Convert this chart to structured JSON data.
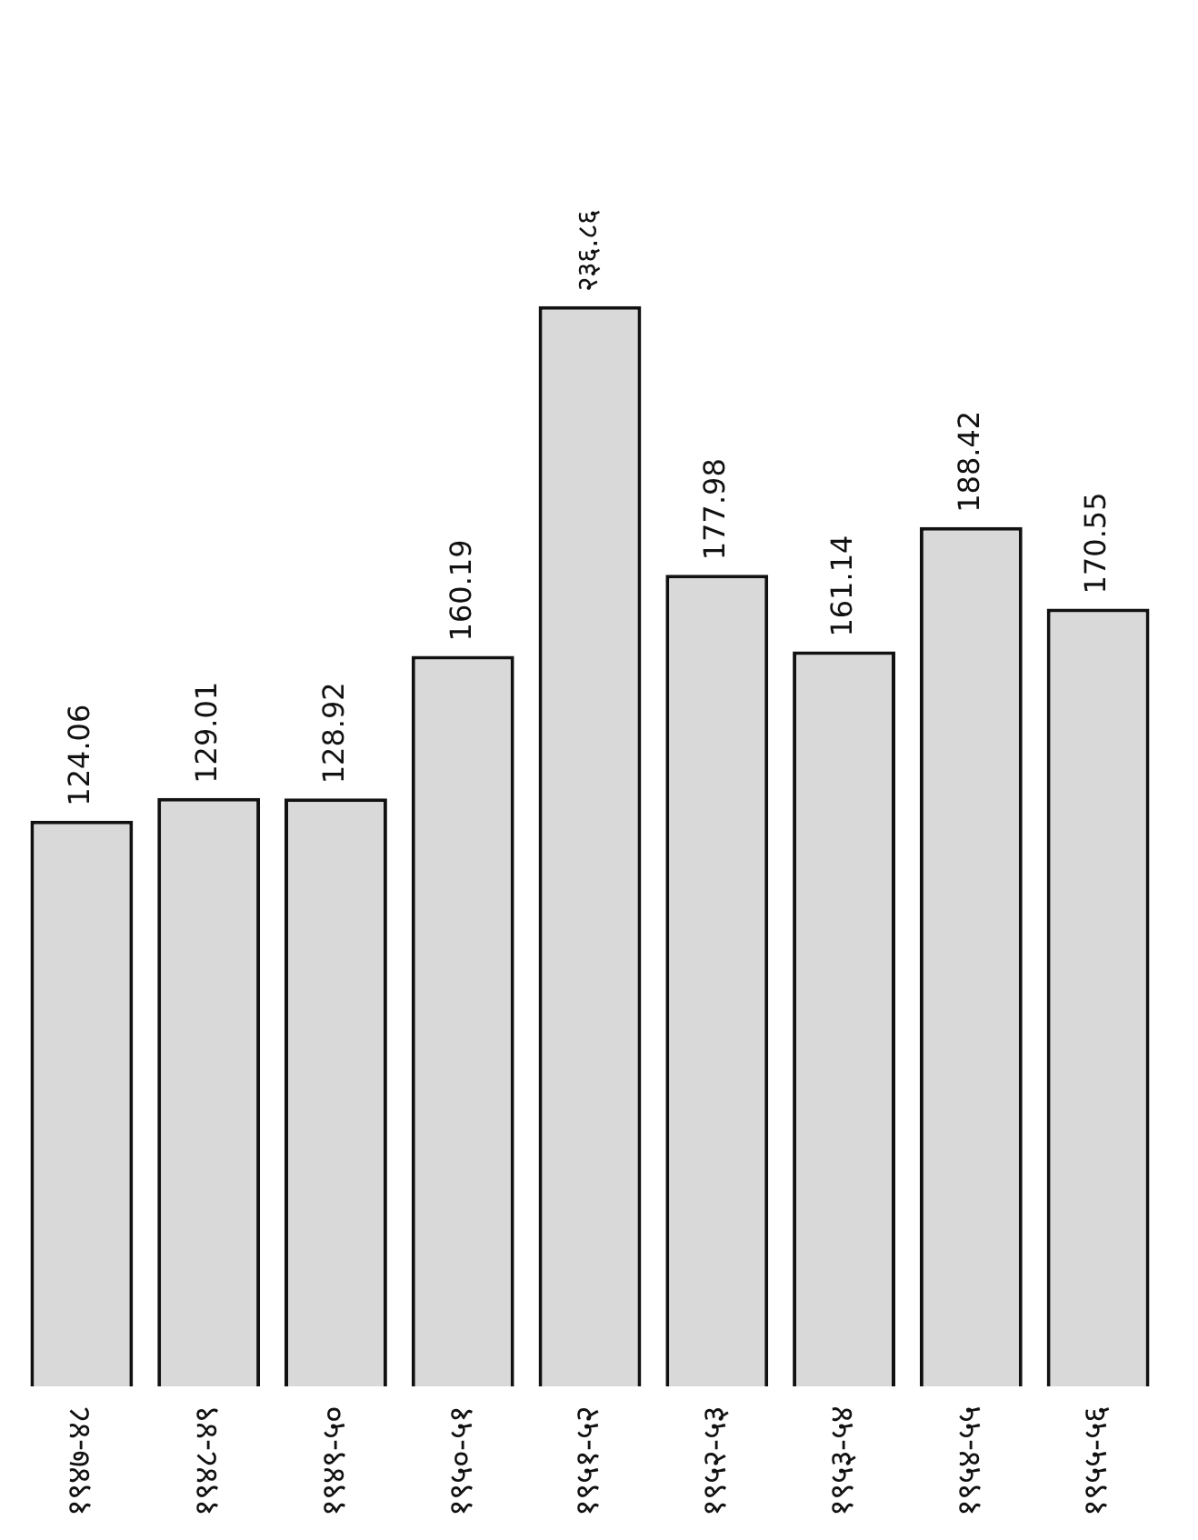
{
  "chart_data": {
    "type": "bar",
    "categories": [
      "१९४७-४८",
      "१९४८-४९",
      "१९४९-५०",
      "१९५०-५१",
      "१९५१-५२",
      "१९५२-५३",
      "१९५३-५४",
      "१९५४-५५",
      "१९५५-५६"
    ],
    "values": [
      124.06,
      129.01,
      128.92,
      160.19,
      236.86,
      177.98,
      161.14,
      188.42,
      170.55
    ],
    "value_labels": [
      "124.06",
      "129.01",
      "128.92",
      "160.19",
      "२३६.८६",
      "177.98",
      "161.14",
      "188.42",
      "170.55"
    ],
    "color": "#d9d9d9",
    "grid": false,
    "legend": false
  }
}
